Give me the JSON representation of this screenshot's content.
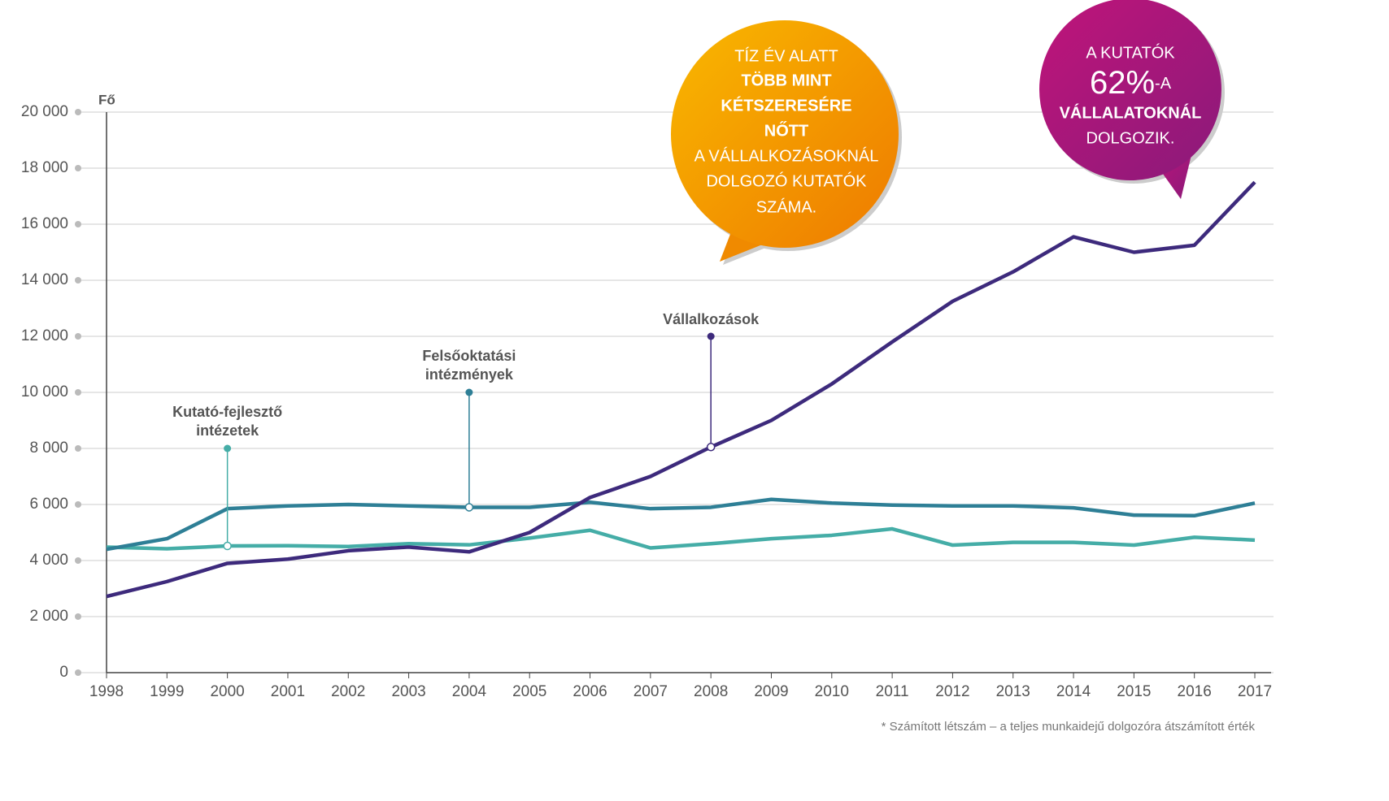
{
  "chart_data": {
    "type": "line",
    "y_label": "Fő",
    "categories": [
      "1998",
      "1999",
      "2000",
      "2001",
      "2002",
      "2003",
      "2004",
      "2005",
      "2006",
      "2007",
      "2008",
      "2009",
      "2010",
      "2011",
      "2012",
      "2013",
      "2014",
      "2015",
      "2016",
      "2017"
    ],
    "series": [
      {
        "name": "Kutató-fejlesztő intézetek",
        "color": "#45ada7",
        "values": [
          4480,
          4420,
          4520,
          4530,
          4500,
          4600,
          4560,
          4800,
          5080,
          4450,
          4600,
          4780,
          4900,
          5130,
          4550,
          4650,
          4650,
          4550,
          4830,
          4730
        ]
      },
      {
        "name": "Felsőoktatási intézmények",
        "color": "#2e7f96",
        "values": [
          4400,
          4780,
          5850,
          5950,
          6000,
          5950,
          5900,
          5900,
          6080,
          5850,
          5900,
          6180,
          6050,
          5980,
          5950,
          5950,
          5880,
          5620,
          5600,
          6050
        ]
      },
      {
        "name": "Vállalkozások",
        "color": "#3d2a7c",
        "values": [
          2720,
          3250,
          3900,
          4050,
          4350,
          4480,
          4310,
          5000,
          6250,
          7000,
          8050,
          9000,
          10300,
          11800,
          13250,
          14300,
          15550,
          15000,
          15250,
          17500
        ]
      }
    ],
    "ylim": [
      0,
      20000
    ],
    "yticks": [
      0,
      {
        "value": 2000,
        "label": "2 000"
      },
      {
        "value": 4000,
        "label": "4 000"
      },
      {
        "value": 6000,
        "label": "6 000"
      },
      {
        "value": 8000,
        "label": "8 000"
      },
      {
        "value": 10000,
        "label": "10 000"
      },
      {
        "value": 12000,
        "label": "12 000"
      },
      {
        "value": 14000,
        "label": "14 000"
      },
      {
        "value": 16000,
        "label": "16 000"
      },
      {
        "value": 18000,
        "label": "18 000"
      },
      {
        "value": 20000,
        "label": "20 000"
      }
    ],
    "grid": true,
    "bubble_orange": [
      "TÍZ ÉV ALATT",
      "TÖBB MINT",
      "KÉTSZERESÉRE",
      "NŐTT",
      "A VÁLLALKOZÁSOKNÁL",
      "DOLGOZÓ KUTATÓK",
      "SZÁMA."
    ],
    "bubble_purple": [
      "A KUTATÓK",
      "62%",
      "-A",
      "VÁLLALATOKNÁL",
      "DOLGOZIK."
    ],
    "footnote": "* Számított létszám – a teljes munkaidejű dolgozóra átszámított érték"
  }
}
